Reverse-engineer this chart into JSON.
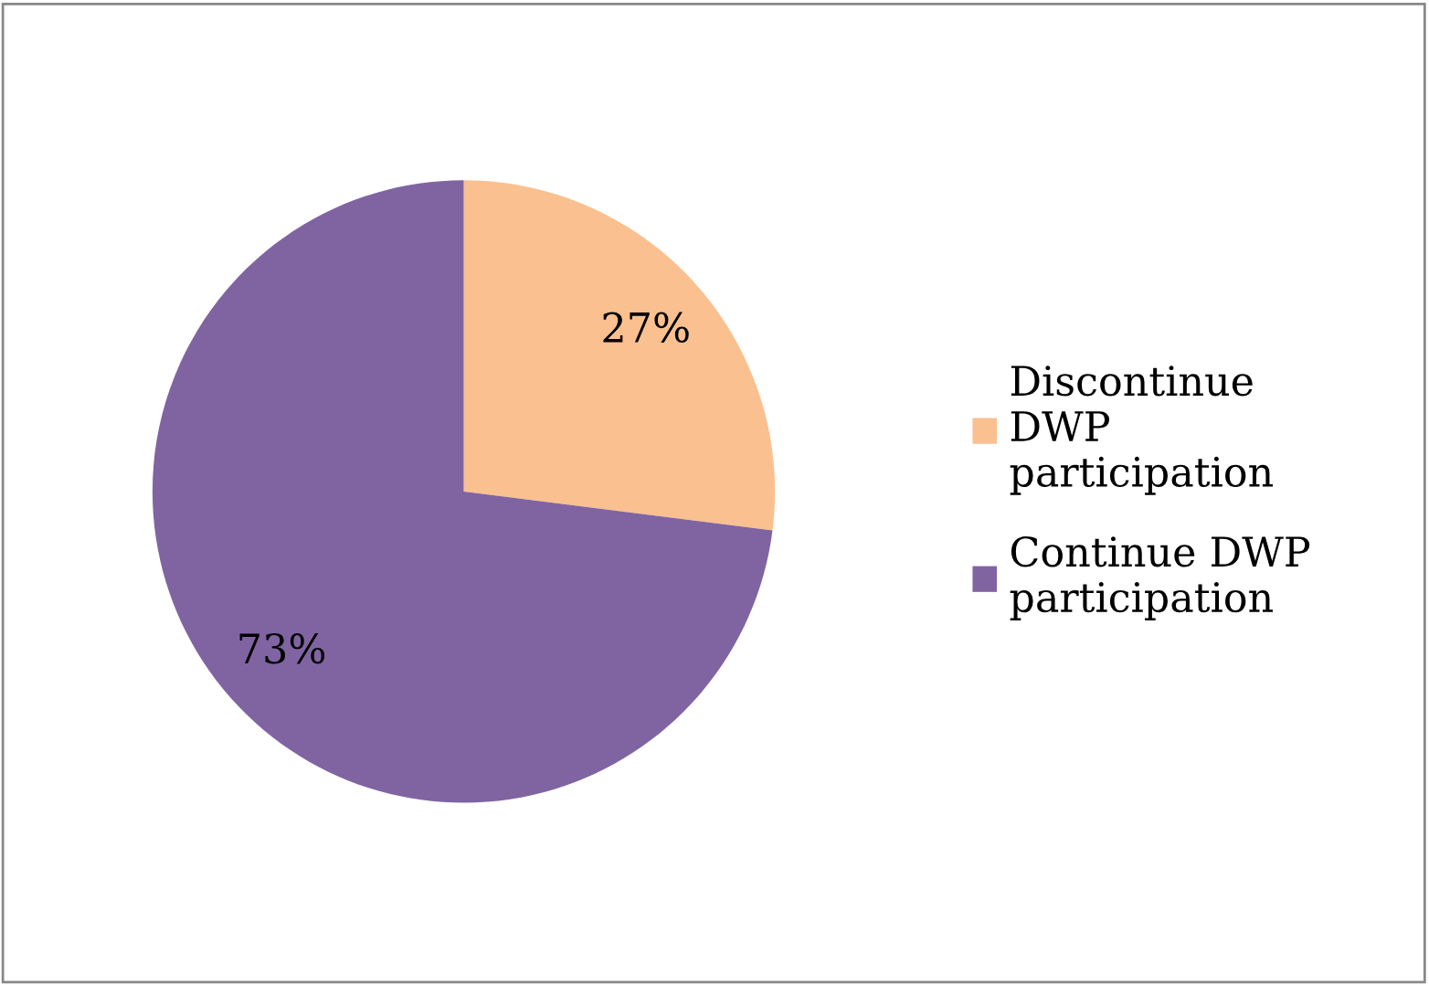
{
  "chart_data": {
    "type": "pie",
    "categories": [
      "Discontinue DWP participation",
      "Continue DWP participation"
    ],
    "values": [
      27,
      73
    ],
    "colors": [
      "#fac090",
      "#8064a2"
    ],
    "value_labels": [
      "27%",
      "73%"
    ],
    "legend": "right"
  }
}
